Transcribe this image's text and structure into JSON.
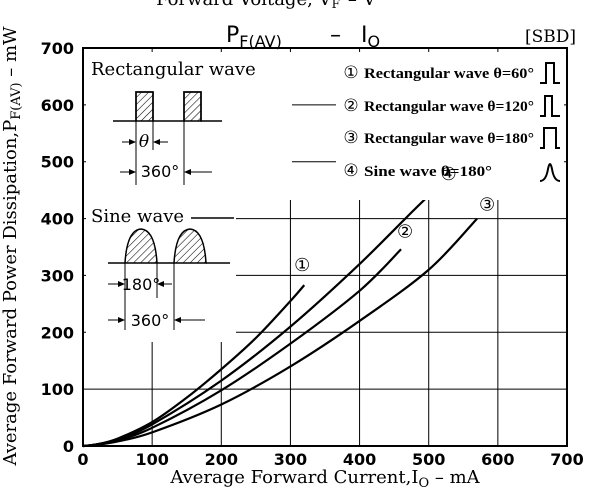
{
  "chart_data": {
    "type": "line",
    "title_top": "Forward Voltage, V",
    "title_top_sub": "F",
    "title": "P",
    "title_sub": "F(AV)",
    "title_dash": "–",
    "title_right": "I",
    "title_right_sub": "O",
    "tag": "[SBD]",
    "xlabel": "Average Forward Current,I",
    "xlabel_sub": "O",
    "xlabel_unit": " – mA",
    "ylabel": "Average Forward Power Dissipation,P",
    "ylabel_sub": "F(AV)",
    "ylabel_unit": " – mW",
    "xlim": [
      0,
      700
    ],
    "ylim": [
      0,
      700
    ],
    "x_ticks": [
      0,
      100,
      200,
      300,
      400,
      500,
      600,
      700
    ],
    "y_ticks": [
      0,
      100,
      200,
      300,
      400,
      500,
      600,
      700
    ],
    "grid": true,
    "legend_position": "top-right",
    "series": [
      {
        "marker": "①",
        "name": "Rectangular wave θ=60°",
        "wave": "rect-narrow",
        "x": [
          0,
          20,
          50,
          100,
          150,
          200,
          250,
          300,
          320
        ],
        "y": [
          0,
          3,
          13,
          42,
          85,
          135,
          190,
          255,
          283
        ]
      },
      {
        "marker": "②",
        "name": "Rectangular wave θ=120°",
        "wave": "rect-medium",
        "x": [
          0,
          20,
          50,
          100,
          200,
          300,
          400,
          460
        ],
        "y": [
          0,
          3,
          10,
          32,
          98,
          180,
          273,
          346
        ]
      },
      {
        "marker": "③",
        "name": "Rectangular wave θ=180°",
        "wave": "rect-wide",
        "x": [
          0,
          20,
          50,
          100,
          200,
          300,
          400,
          500,
          570
        ],
        "y": [
          0,
          2,
          8,
          24,
          73,
          140,
          220,
          310,
          400
        ]
      },
      {
        "marker": "④",
        "name": "Sine wave θ=180°",
        "wave": "sine",
        "x": [
          0,
          20,
          50,
          100,
          200,
          300,
          400,
          500,
          520
        ],
        "y": [
          0,
          3,
          11,
          38,
          115,
          210,
          320,
          440,
          450
        ]
      }
    ],
    "insets": {
      "rectangular_label": "Rectangular wave",
      "rectangular_theta": "θ",
      "rectangular_period": "360°",
      "sine_label": "Sine wave",
      "sine_half": "180°",
      "sine_period": "360°"
    }
  }
}
